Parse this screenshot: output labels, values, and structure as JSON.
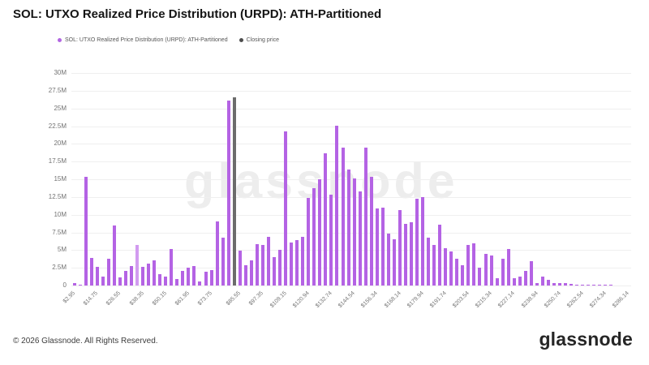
{
  "header": {
    "title": "SOL: UTXO Realized Price Distribution (URPD): ATH-Partitioned"
  },
  "legend": [
    {
      "label": "SOL: UTXO Realized Price Distribution (URPD): ATH-Partitioned",
      "color": "#b266e2"
    },
    {
      "label": "Closing price",
      "color": "#4d4d4d"
    }
  ],
  "watermark": "glassnode",
  "footer": {
    "copyright": "© 2026 Glassnode. All Rights Reserved.",
    "logo": "glassnode"
  },
  "chart_data": {
    "type": "bar",
    "title": "SOL: UTXO Realized Price Distribution (URPD): ATH-Partitioned",
    "ylabel": "",
    "xlabel": "",
    "ylim_millions": [
      0,
      30
    ],
    "grid": "horizontal",
    "legend_position": "top-left",
    "y_tick_labels": [
      "0",
      "2.5M",
      "5M",
      "7.5M",
      "10M",
      "12.5M",
      "15M",
      "17.5M",
      "20M",
      "22.5M",
      "25M",
      "27.5M",
      "30M"
    ],
    "x_tick_labels": [
      "$2.95",
      "$14.75",
      "$26.55",
      "$38.35",
      "$50.15",
      "$61.95",
      "$73.75",
      "$85.55",
      "$97.35",
      "$109.15",
      "$120.94",
      "$132.74",
      "$144.54",
      "$156.34",
      "$168.14",
      "$179.94",
      "$191.74",
      "$203.54",
      "$215.34",
      "$227.14",
      "$238.94",
      "$250.74",
      "$262.54",
      "$274.34",
      "$286.14"
    ],
    "bin_start_usd": 2.95,
    "bin_step_usd": 2.95,
    "colors": {
      "bar": "#b463e4",
      "bar_light": "#d29bf0",
      "closing": "#6c6c6c"
    },
    "series": [
      {
        "name": "SOL: UTXO Realized Price Distribution (URPD): ATH-Partitioned",
        "color": "#b463e4"
      },
      {
        "name": "Closing price",
        "color": "#6c6c6c"
      }
    ],
    "bars_format": "[value_in_millions, flag('':purple,'l':light,'g':closing), tick_label?]",
    "bars": [
      [
        0.3,
        "",
        "$2.95"
      ],
      [
        0.1,
        ""
      ],
      [
        15.4,
        ""
      ],
      [
        3.9,
        ""
      ],
      [
        2.6,
        "",
        "$14.75"
      ],
      [
        1.3,
        ""
      ],
      [
        3.8,
        ""
      ],
      [
        8.5,
        ""
      ],
      [
        1.1,
        "",
        "$26.55"
      ],
      [
        2.1,
        ""
      ],
      [
        2.8,
        ""
      ],
      [
        5.7,
        "l"
      ],
      [
        2.6,
        "",
        "$38.35"
      ],
      [
        3.1,
        ""
      ],
      [
        3.6,
        ""
      ],
      [
        1.6,
        ""
      ],
      [
        1.3,
        "",
        "$50.15"
      ],
      [
        5.2,
        ""
      ],
      [
        0.9,
        ""
      ],
      [
        2.1,
        ""
      ],
      [
        2.5,
        "",
        "$61.95"
      ],
      [
        2.7,
        ""
      ],
      [
        0.6,
        ""
      ],
      [
        1.9,
        ""
      ],
      [
        2.2,
        "",
        "$73.75"
      ],
      [
        9.1,
        ""
      ],
      [
        6.7,
        ""
      ],
      [
        26.1,
        ""
      ],
      [
        26.6,
        "g"
      ],
      [
        4.9,
        "",
        "$85.55"
      ],
      [
        2.9,
        ""
      ],
      [
        3.6,
        ""
      ],
      [
        5.8,
        ""
      ],
      [
        5.7,
        "",
        "$97.35"
      ],
      [
        6.9,
        ""
      ],
      [
        4.0,
        ""
      ],
      [
        5.0,
        ""
      ],
      [
        21.8,
        "",
        "$109.15"
      ],
      [
        6.1,
        ""
      ],
      [
        6.4,
        ""
      ],
      [
        6.9,
        ""
      ],
      [
        12.4,
        "",
        "$120.94"
      ],
      [
        13.7,
        ""
      ],
      [
        15.0,
        ""
      ],
      [
        18.7,
        ""
      ],
      [
        12.8,
        "",
        "$132.74"
      ],
      [
        22.5,
        ""
      ],
      [
        19.5,
        ""
      ],
      [
        16.4,
        ""
      ],
      [
        15.1,
        "",
        "$144.54"
      ],
      [
        13.3,
        ""
      ],
      [
        19.5,
        ""
      ],
      [
        15.3,
        ""
      ],
      [
        10.9,
        "",
        "$156.34"
      ],
      [
        11.0,
        ""
      ],
      [
        7.3,
        ""
      ],
      [
        6.5,
        ""
      ],
      [
        10.7,
        "",
        "$168.14"
      ],
      [
        8.7,
        ""
      ],
      [
        8.9,
        ""
      ],
      [
        12.2,
        ""
      ],
      [
        12.5,
        "",
        "$179.94"
      ],
      [
        6.7,
        ""
      ],
      [
        5.7,
        ""
      ],
      [
        8.6,
        ""
      ],
      [
        5.3,
        "",
        "$191.74"
      ],
      [
        4.8,
        ""
      ],
      [
        3.8,
        ""
      ],
      [
        2.9,
        ""
      ],
      [
        5.7,
        "",
        "$203.54"
      ],
      [
        6.0,
        ""
      ],
      [
        2.5,
        ""
      ],
      [
        4.5,
        ""
      ],
      [
        4.2,
        "",
        "$215.34"
      ],
      [
        1.0,
        ""
      ],
      [
        3.8,
        ""
      ],
      [
        5.2,
        ""
      ],
      [
        1.0,
        "",
        "$227.14"
      ],
      [
        1.3,
        ""
      ],
      [
        2.1,
        ""
      ],
      [
        3.4,
        ""
      ],
      [
        0.4,
        "",
        "$238.94"
      ],
      [
        1.3,
        ""
      ],
      [
        0.8,
        ""
      ],
      [
        0.4,
        ""
      ],
      [
        0.3,
        "",
        "$250.74"
      ],
      [
        0.3,
        ""
      ],
      [
        0.2,
        ""
      ],
      [
        0.15,
        ""
      ],
      [
        0.12,
        "",
        "$262.54"
      ],
      [
        0.1,
        ""
      ],
      [
        0.08,
        ""
      ],
      [
        0.06,
        ""
      ],
      [
        0.05,
        "",
        "$274.34"
      ],
      [
        0.03,
        ""
      ],
      [
        0,
        ""
      ],
      [
        0,
        ""
      ],
      [
        0,
        "",
        "$286.14"
      ]
    ]
  }
}
